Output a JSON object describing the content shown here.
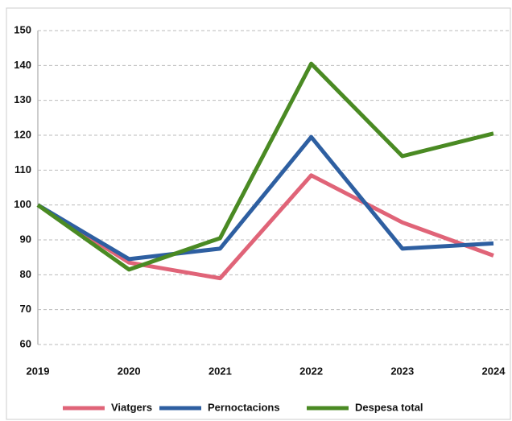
{
  "chart_data": {
    "type": "line",
    "categories": [
      "2019",
      "2020",
      "2021",
      "2022",
      "2023",
      "2024"
    ],
    "series": [
      {
        "name": "Viatgers",
        "color": "#e06478",
        "values": [
          100,
          83.5,
          79,
          108.5,
          95,
          85.5
        ]
      },
      {
        "name": "Pernoctacions",
        "color": "#2e5fa1",
        "values": [
          100,
          84.5,
          87.5,
          119.5,
          87.5,
          89
        ]
      },
      {
        "name": "Despesa total",
        "color": "#4a8a23",
        "values": [
          100,
          81.5,
          90.5,
          140.5,
          114,
          120.5
        ]
      }
    ],
    "ylim": [
      60,
      150
    ],
    "yticks": [
      60,
      70,
      80,
      90,
      100,
      110,
      120,
      130,
      140,
      150
    ],
    "grid": true,
    "legend": "bottom"
  }
}
